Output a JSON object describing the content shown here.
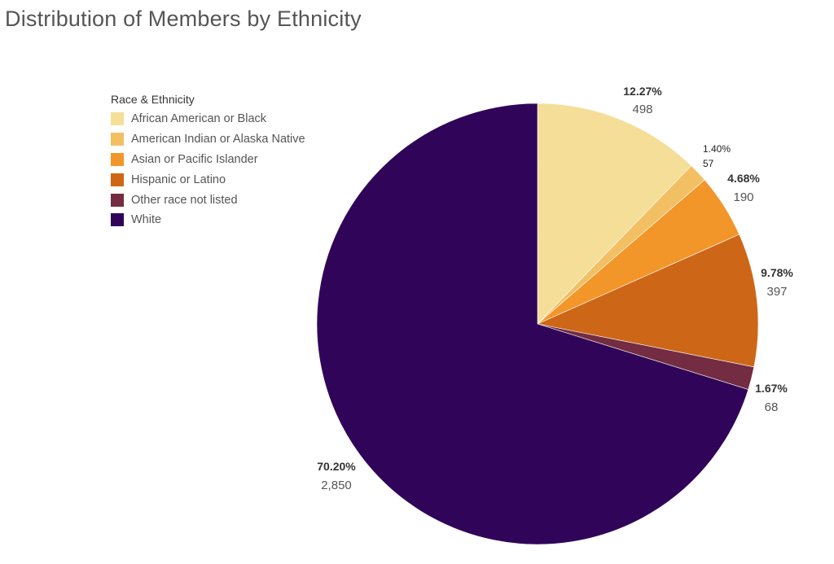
{
  "chart_data": {
    "type": "pie",
    "title": "Distribution of Members by Ethnicity",
    "legend_title": "Race & Ethnicity",
    "legend_position": "top-left",
    "start_angle_deg": 0,
    "direction": "clockwise",
    "slices": [
      {
        "label": "African American or Black",
        "value": 498,
        "value_text": "498",
        "percent": "12.27%",
        "color": "#F4DE98"
      },
      {
        "label": "American Indian or Alaska Native",
        "value": 57,
        "value_text": "57",
        "percent": "1.40%",
        "color": "#F2C063"
      },
      {
        "label": "Asian or Pacific Islander",
        "value": 190,
        "value_text": "190",
        "percent": "4.68%",
        "color": "#F29629"
      },
      {
        "label": "Hispanic or Latino",
        "value": 397,
        "value_text": "397",
        "percent": "9.78%",
        "color": "#CE6617"
      },
      {
        "label": "Other race not listed",
        "value": 68,
        "value_text": "68",
        "percent": "1.67%",
        "color": "#732C41"
      },
      {
        "label": "White",
        "value": 2850,
        "value_text": "2,850",
        "percent": "70.20%",
        "color": "#300559"
      }
    ]
  }
}
